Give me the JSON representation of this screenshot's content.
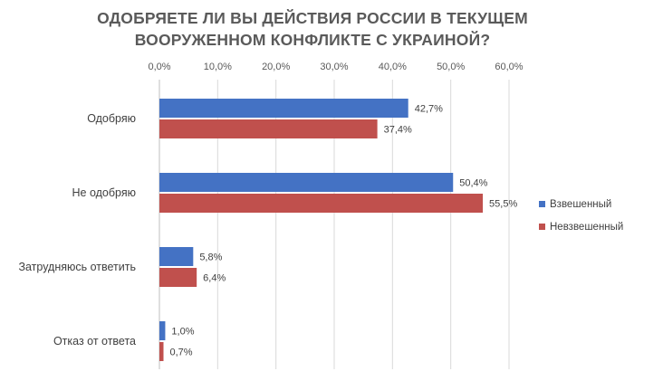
{
  "chart_data": {
    "type": "bar",
    "orientation": "horizontal",
    "title_lines": [
      "ОДОБРЯЕТЕ ЛИ ВЫ ДЕЙСТВИЯ РОССИИ В ТЕКУЩЕМ",
      "ВООРУЖЕННОМ КОНФЛИКТЕ С УКРАИНОЙ?"
    ],
    "categories": [
      "Одобряю",
      "Не одобряю",
      "Затрудняюсь ответить",
      "Отказ от ответа"
    ],
    "series": [
      {
        "name": "Взвешенный",
        "color": "#4472c4",
        "values": [
          42.7,
          50.4,
          5.8,
          1.0
        ],
        "labels": [
          "42,7%",
          "50,4%",
          "5,8%",
          "1,0%"
        ]
      },
      {
        "name": "Невзвешенный",
        "color": "#c0504d",
        "values": [
          37.4,
          55.5,
          6.4,
          0.7
        ],
        "labels": [
          "37,4%",
          "55,5%",
          "6,4%",
          "0,7%"
        ]
      }
    ],
    "xlim": [
      0,
      60
    ],
    "xticks": [
      0,
      10,
      20,
      30,
      40,
      50,
      60
    ],
    "xtick_labels": [
      "0,0%",
      "10,0%",
      "20,0%",
      "30,0%",
      "40,0%",
      "50,0%",
      "60,0%"
    ],
    "axis_position": "top",
    "grid": true,
    "legend_position": "right",
    "colors": {
      "grid": "#d9d9d9",
      "axis": "#bfbfbf",
      "title": "#5a5a5a"
    }
  }
}
